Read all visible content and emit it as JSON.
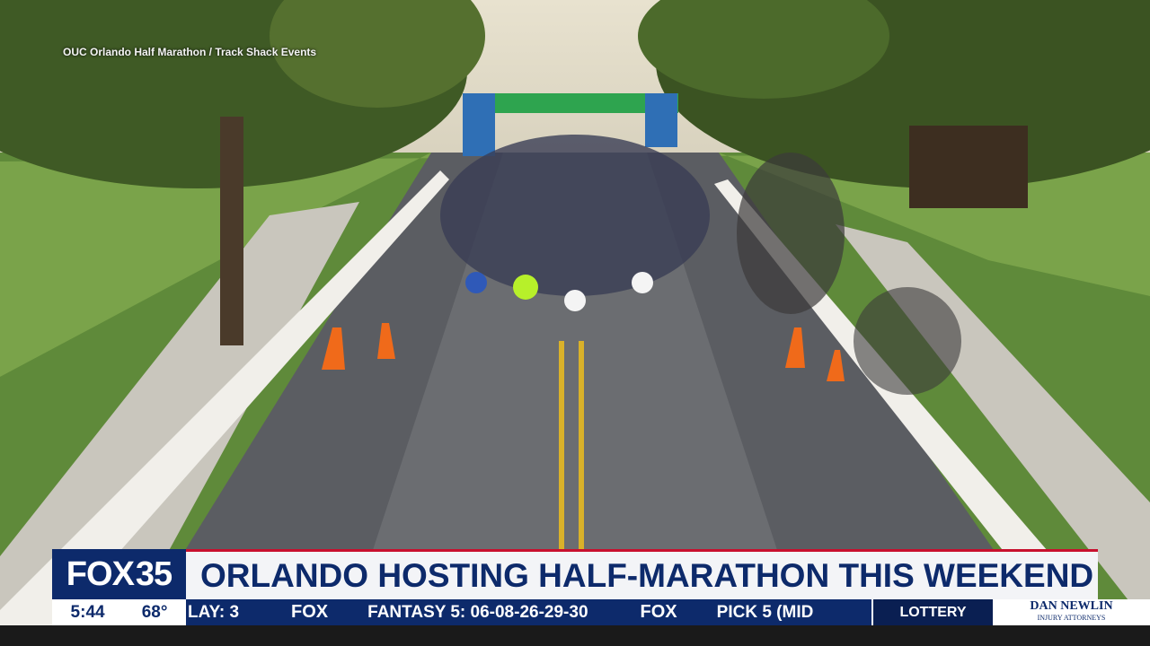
{
  "credit": "OUC Orlando Half Marathon / Track Shack Events",
  "lower_third": {
    "logo": {
      "brand": "FOX",
      "channel": "35"
    },
    "headline": "ORLANDO HOSTING HALF-MARATHON THIS WEEKEND",
    "time": "5:44",
    "temperature": "68°",
    "ticker": [
      "LAY: 3",
      "FOX",
      "FANTASY 5: 06-08-26-29-30",
      "FOX",
      "PICK 5 (MID"
    ],
    "ticker_label": "LOTTERY",
    "sponsor": {
      "name": "DAN NEWLIN",
      "tagline": "INJURY ATTORNEYS"
    }
  }
}
